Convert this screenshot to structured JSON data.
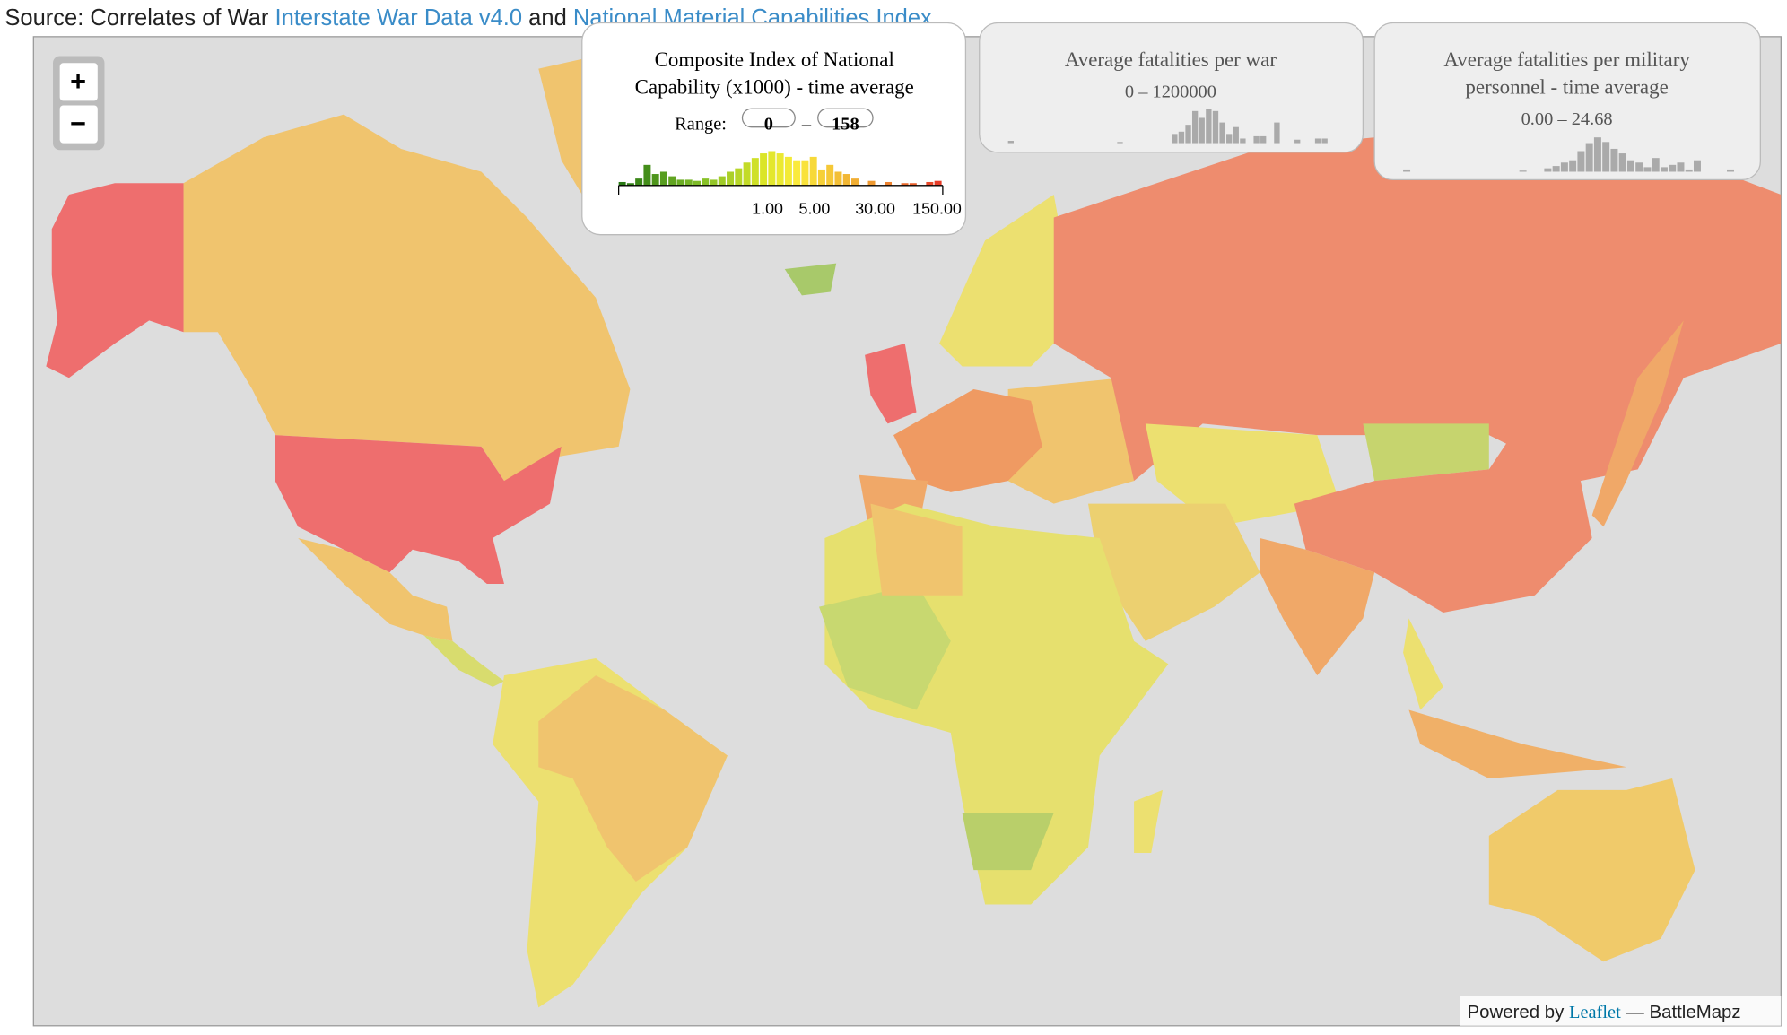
{
  "source": {
    "prefix": "Source: Correlates of War",
    "link1": "Interstate War Data v4.0",
    "joiner": "and",
    "link2": "National Material Capabilities Index"
  },
  "zoom": {
    "in": "+",
    "out": "−"
  },
  "legends": [
    {
      "title_lines": [
        "Composite Index of National",
        "Capability (x1000) - time average"
      ],
      "range_label": "Range:",
      "range_min": "0",
      "range_sep": "–",
      "range_max": "158",
      "histogram": [
        3,
        2,
        6,
        18,
        10,
        12,
        8,
        5,
        5,
        4,
        6,
        5,
        8,
        12,
        15,
        20,
        24,
        28,
        30,
        28,
        25,
        22,
        22,
        25,
        14,
        18,
        12,
        10,
        6,
        0,
        4,
        0,
        3,
        0,
        2,
        2,
        0,
        3,
        4
      ],
      "tick_labels": [
        "1.00",
        "5.00",
        "30.00",
        "150.00"
      ]
    },
    {
      "title_lines": [
        "Average fatalities per war"
      ],
      "range": "0 – 1200000",
      "histogram": [
        2,
        0,
        0,
        0,
        0,
        0,
        0,
        0,
        0,
        0,
        0,
        0,
        0,
        0,
        0,
        0,
        1,
        0,
        0,
        0,
        0,
        0,
        0,
        0,
        8,
        10,
        16,
        28,
        22,
        30,
        28,
        18,
        8,
        14,
        4,
        0,
        6,
        6,
        0,
        18,
        0,
        0,
        3,
        0,
        0,
        4,
        4
      ]
    },
    {
      "title_lines": [
        "Average fatalities per military",
        "personnel - time average"
      ],
      "range": "0.00 – 24.68",
      "histogram": [
        2,
        0,
        0,
        0,
        0,
        0,
        0,
        0,
        0,
        0,
        0,
        0,
        0,
        0,
        1,
        0,
        0,
        3,
        5,
        8,
        10,
        18,
        25,
        30,
        26,
        20,
        16,
        10,
        8,
        4,
        12,
        4,
        6,
        8,
        2,
        10,
        0,
        0,
        0,
        2
      ]
    }
  ],
  "attribution": {
    "prefix": "Powered by",
    "link": "Leaflet",
    "suffix": "— BattleMapz"
  }
}
